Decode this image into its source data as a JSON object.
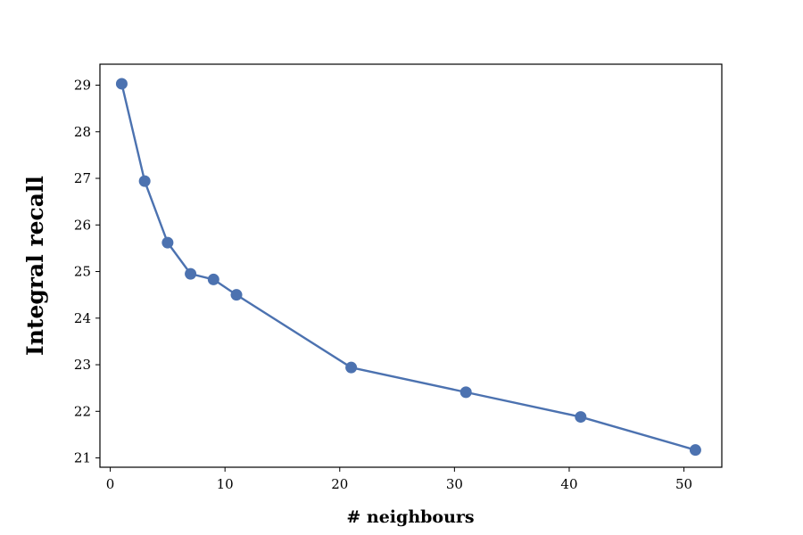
{
  "chart_data": {
    "type": "line",
    "title": "",
    "xlabel": "# neighbours",
    "ylabel": "Integral recall",
    "x": [
      1,
      3,
      5,
      7,
      9,
      11,
      21,
      31,
      41,
      51
    ],
    "series": [
      {
        "values": [
          29.03,
          26.94,
          25.62,
          24.95,
          24.83,
          24.5,
          22.94,
          22.41,
          21.88,
          21.17
        ],
        "color": "#4c72b0"
      }
    ],
    "xlim": [
      -0.9,
      53.3
    ],
    "ylim": [
      20.8,
      29.45
    ],
    "xticks": [
      0,
      10,
      20,
      30,
      40,
      50
    ],
    "yticks": [
      21,
      22,
      23,
      24,
      25,
      26,
      27,
      28,
      29
    ],
    "grid": false,
    "legend": "none"
  }
}
